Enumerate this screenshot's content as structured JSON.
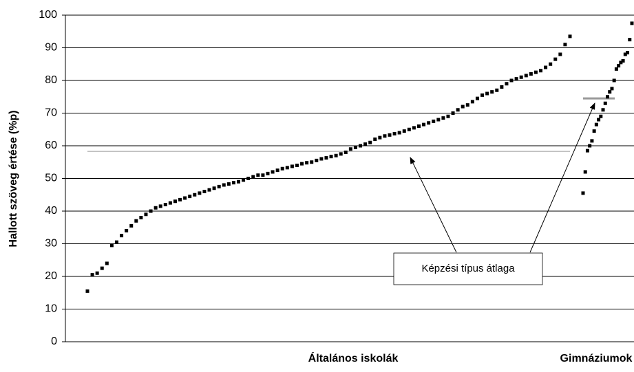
{
  "chart_data": {
    "type": "scatter",
    "y_label": "Hallott szöveg értése (%p)",
    "annotation": "Képzési típus átlaga",
    "ylim": [
      0,
      100
    ],
    "yticks": [
      0,
      10,
      20,
      30,
      40,
      50,
      60,
      70,
      80,
      90,
      100
    ],
    "grid": true,
    "color": "#000000",
    "mean_color": "#999999",
    "groups": [
      {
        "name": "Általános iskolák",
        "mean": 58.3,
        "values": [
          15.5,
          20.5,
          21,
          22.5,
          24,
          29.5,
          30.5,
          32.5,
          34,
          35.5,
          37,
          38,
          39,
          40,
          41,
          41.5,
          42,
          42.5,
          43,
          43.5,
          44,
          44.5,
          45,
          45.5,
          46,
          46.5,
          47,
          47.5,
          48,
          48.3,
          48.7,
          49,
          49.5,
          50,
          50.5,
          51,
          51,
          51.5,
          52,
          52.5,
          53,
          53.3,
          53.7,
          54,
          54.5,
          54.8,
          55,
          55.5,
          56,
          56.3,
          56.7,
          57,
          57.5,
          58,
          59,
          59.5,
          60,
          60.5,
          61,
          62,
          62.5,
          63,
          63.3,
          63.7,
          64,
          64.5,
          65,
          65.5,
          66,
          66.5,
          67,
          67.5,
          68,
          68.5,
          69,
          70,
          71,
          72,
          72.5,
          73.5,
          74.5,
          75.5,
          76,
          76.5,
          77,
          78,
          79,
          80,
          80.5,
          81,
          81.5,
          82,
          82.5,
          83,
          84,
          85,
          86.5,
          88,
          91,
          93.5
        ]
      },
      {
        "name": "Gimnáziumok",
        "mean": 74.5,
        "values": [
          45.5,
          52,
          58.5,
          60,
          61.5,
          64.5,
          66.5,
          68,
          69,
          71,
          73,
          75,
          76.5,
          77.5,
          80,
          83.5,
          84.5,
          85.5,
          86,
          88,
          88.5,
          92.5,
          97.5
        ]
      }
    ]
  }
}
